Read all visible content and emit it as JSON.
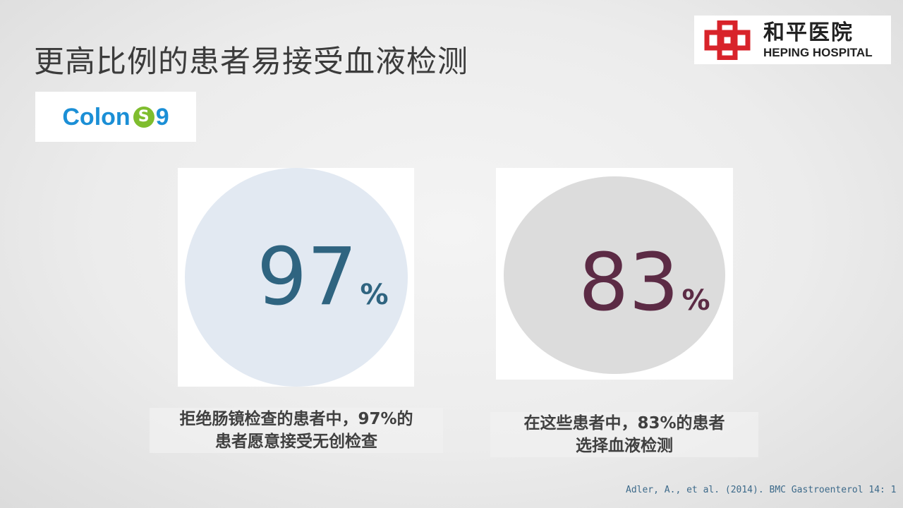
{
  "title": "更高比例的患者易接受血液检测",
  "hospital_logo": {
    "name_cn": "和平医院",
    "name_en": "HEPING HOSPITAL",
    "color": "#d8232a"
  },
  "product_logo": {
    "text": "Colon",
    "mark": "S",
    "suffix": "9",
    "colors": {
      "text": "#1b8fd6",
      "mark": "#7fbd2e"
    }
  },
  "stats": [
    {
      "value": "97",
      "unit": "%",
      "caption_line1": "拒绝肠镜检查的患者中，97%的",
      "caption_line2": "患者愿意接受无创检查",
      "color": "#2f6480",
      "circle_color": "#e2e9f2"
    },
    {
      "value": "83",
      "unit": "%",
      "caption_line1": "在这些患者中，83%的患者",
      "caption_line2": "选择血液检测",
      "color": "#5c2b45",
      "circle_color": "#dcdcdc"
    }
  ],
  "citation": "Adler, A., et al. (2014). BMC Gastroenterol 14: 1"
}
